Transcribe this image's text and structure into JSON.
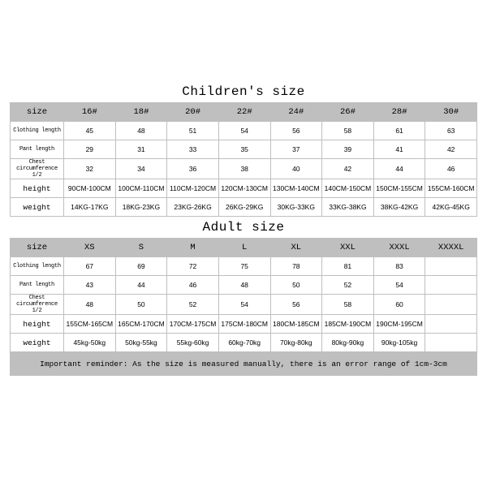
{
  "children": {
    "title": "Children's size",
    "labels": [
      "size",
      "Clothing length",
      "Pant length",
      "Chest circumference 1/2",
      "height",
      "weight"
    ],
    "label_small": [
      false,
      true,
      true,
      true,
      false,
      false
    ],
    "cols": [
      "16#",
      "18#",
      "20#",
      "22#",
      "24#",
      "26#",
      "28#",
      "30#"
    ],
    "rows": [
      [
        "45",
        "48",
        "51",
        "54",
        "56",
        "58",
        "61",
        "63"
      ],
      [
        "29",
        "31",
        "33",
        "35",
        "37",
        "39",
        "41",
        "42"
      ],
      [
        "32",
        "34",
        "36",
        "38",
        "40",
        "42",
        "44",
        "46"
      ],
      [
        "90CM-100CM",
        "100CM-110CM",
        "110CM-120CM",
        "120CM-130CM",
        "130CM-140CM",
        "140CM-150CM",
        "150CM-155CM",
        "155CM-160CM"
      ],
      [
        "14KG-17KG",
        "18KG-23KG",
        "23KG-26KG",
        "26KG-29KG",
        "30KG-33KG",
        "33KG-38KG",
        "38KG-42KG",
        "42KG-45KG"
      ]
    ]
  },
  "adult": {
    "title": "Adult size",
    "labels": [
      "size",
      "Clothing length",
      "Pant length",
      "Chest circumference 1/2",
      "height",
      "weight"
    ],
    "label_small": [
      false,
      true,
      true,
      true,
      false,
      false
    ],
    "cols": [
      "XS",
      "S",
      "M",
      "L",
      "XL",
      "XXL",
      "XXXL",
      "XXXXL"
    ],
    "rows": [
      [
        "67",
        "69",
        "72",
        "75",
        "78",
        "81",
        "83",
        ""
      ],
      [
        "43",
        "44",
        "46",
        "48",
        "50",
        "52",
        "54",
        ""
      ],
      [
        "48",
        "50",
        "52",
        "54",
        "56",
        "58",
        "60",
        ""
      ],
      [
        "155CM-165CM",
        "165CM-170CM",
        "170CM-175CM",
        "175CM-180CM",
        "180CM-185CM",
        "185CM-190CM",
        "190CM-195CM",
        ""
      ],
      [
        "45kg-50kg",
        "50kg-55kg",
        "55kg-60kg",
        "60kg-70kg",
        "70kg-80kg",
        "80kg-90kg",
        "90kg-105kg",
        ""
      ]
    ]
  },
  "reminder": "Important reminder: As the size is measured manually, there is an error range of 1cm-3cm",
  "colors": {
    "header_bg": "#bfbfbf",
    "border": "#bfbfbf",
    "cell_bg": "#ffffff"
  }
}
